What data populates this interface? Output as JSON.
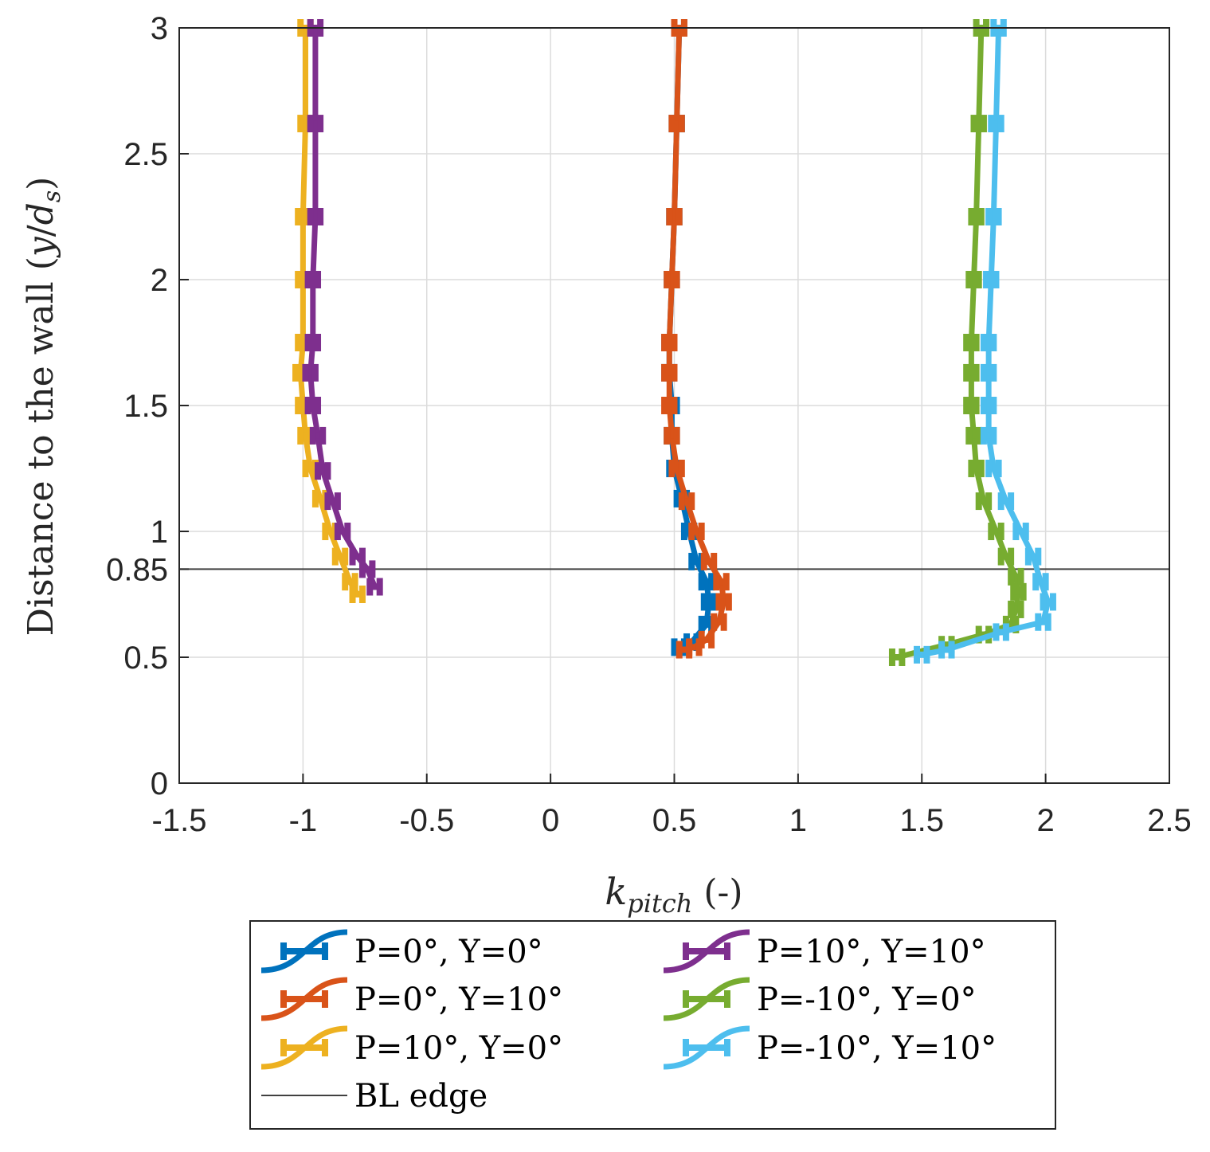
{
  "chart_data": {
    "type": "line",
    "xlabel": {
      "main": "k",
      "sub": "pitch",
      "suffix": " (-)"
    },
    "ylabel": {
      "prefix": "Distance to the wall (",
      "math_a": "y",
      "slash": "/",
      "math_b": "d",
      "sub": "s",
      "suffix": ")"
    },
    "xlim": [
      -1.5,
      2.5
    ],
    "ylim": [
      0,
      3
    ],
    "grid": true,
    "x_ticks": [
      "-1.5",
      "-1",
      "-0.5",
      "0",
      "0.5",
      "1",
      "1.5",
      "2",
      "2.5"
    ],
    "x_tick_values": [
      -1.5,
      -1,
      -0.5,
      0,
      0.5,
      1,
      1.5,
      2,
      2.5
    ],
    "y_ticks": [
      "0",
      "0.5",
      "0.85",
      "1",
      "1.5",
      "2",
      "2.5",
      "3"
    ],
    "y_tick_values": [
      0,
      0.5,
      0.85,
      1,
      1.5,
      2,
      2.5,
      3
    ],
    "hline": {
      "y": 0.85,
      "label": "BL edge",
      "color": "#404040"
    },
    "legend_location": "below",
    "series": [
      {
        "name": "P=0°, Y=0°",
        "color": "#0072BD",
        "err": 0.02,
        "points": [
          [
            0.52,
            3.0
          ],
          [
            0.51,
            2.62
          ],
          [
            0.5,
            2.25
          ],
          [
            0.49,
            2.0
          ],
          [
            0.48,
            1.75
          ],
          [
            0.48,
            1.63
          ],
          [
            0.49,
            1.5
          ],
          [
            0.49,
            1.38
          ],
          [
            0.5,
            1.25
          ],
          [
            0.53,
            1.13
          ],
          [
            0.56,
            1.0
          ],
          [
            0.59,
            0.88
          ],
          [
            0.63,
            0.8
          ],
          [
            0.64,
            0.72
          ],
          [
            0.63,
            0.63
          ],
          [
            0.57,
            0.56
          ],
          [
            0.52,
            0.54
          ]
        ]
      },
      {
        "name": "P=0°, Y=10°",
        "color": "#D95319",
        "err": 0.02,
        "points": [
          [
            0.52,
            3.0
          ],
          [
            0.51,
            2.62
          ],
          [
            0.5,
            2.25
          ],
          [
            0.49,
            2.0
          ],
          [
            0.48,
            1.75
          ],
          [
            0.48,
            1.63
          ],
          [
            0.48,
            1.5
          ],
          [
            0.49,
            1.38
          ],
          [
            0.51,
            1.25
          ],
          [
            0.55,
            1.12
          ],
          [
            0.59,
            1.0
          ],
          [
            0.64,
            0.88
          ],
          [
            0.69,
            0.8
          ],
          [
            0.7,
            0.72
          ],
          [
            0.68,
            0.64
          ],
          [
            0.63,
            0.57
          ],
          [
            0.58,
            0.54
          ],
          [
            0.54,
            0.53
          ]
        ]
      },
      {
        "name": "P=10°, Y=0°",
        "color": "#EDB120",
        "err": 0.02,
        "points": [
          [
            -0.99,
            3.0
          ],
          [
            -0.99,
            2.62
          ],
          [
            -1.0,
            2.25
          ],
          [
            -1.0,
            2.0
          ],
          [
            -1.0,
            1.75
          ],
          [
            -1.01,
            1.63
          ],
          [
            -1.0,
            1.5
          ],
          [
            -0.99,
            1.38
          ],
          [
            -0.97,
            1.25
          ],
          [
            -0.93,
            1.13
          ],
          [
            -0.89,
            1.0
          ],
          [
            -0.85,
            0.9
          ],
          [
            -0.81,
            0.8
          ],
          [
            -0.78,
            0.75
          ]
        ]
      },
      {
        "name": "P=10°, Y=10°",
        "color": "#7E2F8E",
        "err": 0.02,
        "points": [
          [
            -0.95,
            3.0
          ],
          [
            -0.95,
            2.62
          ],
          [
            -0.95,
            2.25
          ],
          [
            -0.96,
            2.0
          ],
          [
            -0.96,
            1.75
          ],
          [
            -0.97,
            1.63
          ],
          [
            -0.96,
            1.5
          ],
          [
            -0.94,
            1.38
          ],
          [
            -0.92,
            1.24
          ],
          [
            -0.88,
            1.12
          ],
          [
            -0.84,
            1.0
          ],
          [
            -0.78,
            0.9
          ],
          [
            -0.74,
            0.85
          ],
          [
            -0.71,
            0.78
          ]
        ]
      },
      {
        "name": "P=-10°, Y=0°",
        "color": "#77AC30",
        "err": 0.02,
        "points": [
          [
            1.74,
            3.0
          ],
          [
            1.73,
            2.62
          ],
          [
            1.72,
            2.25
          ],
          [
            1.71,
            2.0
          ],
          [
            1.7,
            1.75
          ],
          [
            1.7,
            1.63
          ],
          [
            1.7,
            1.5
          ],
          [
            1.71,
            1.38
          ],
          [
            1.72,
            1.25
          ],
          [
            1.75,
            1.12
          ],
          [
            1.8,
            1.0
          ],
          [
            1.84,
            0.9
          ],
          [
            1.88,
            0.82
          ],
          [
            1.89,
            0.76
          ],
          [
            1.88,
            0.69
          ],
          [
            1.86,
            0.63
          ],
          [
            1.75,
            0.59
          ],
          [
            1.6,
            0.55
          ],
          [
            1.4,
            0.5
          ]
        ]
      },
      {
        "name": "P=-10°, Y=10°",
        "color": "#4DBEEE",
        "err": 0.02,
        "points": [
          [
            1.81,
            3.0
          ],
          [
            1.8,
            2.62
          ],
          [
            1.79,
            2.25
          ],
          [
            1.78,
            2.0
          ],
          [
            1.77,
            1.75
          ],
          [
            1.77,
            1.63
          ],
          [
            1.77,
            1.5
          ],
          [
            1.77,
            1.38
          ],
          [
            1.79,
            1.25
          ],
          [
            1.84,
            1.12
          ],
          [
            1.9,
            1.0
          ],
          [
            1.95,
            0.9
          ],
          [
            1.98,
            0.8
          ],
          [
            2.01,
            0.72
          ],
          [
            1.99,
            0.64
          ],
          [
            1.82,
            0.6
          ],
          [
            1.6,
            0.53
          ],
          [
            1.5,
            0.51
          ]
        ]
      }
    ]
  }
}
